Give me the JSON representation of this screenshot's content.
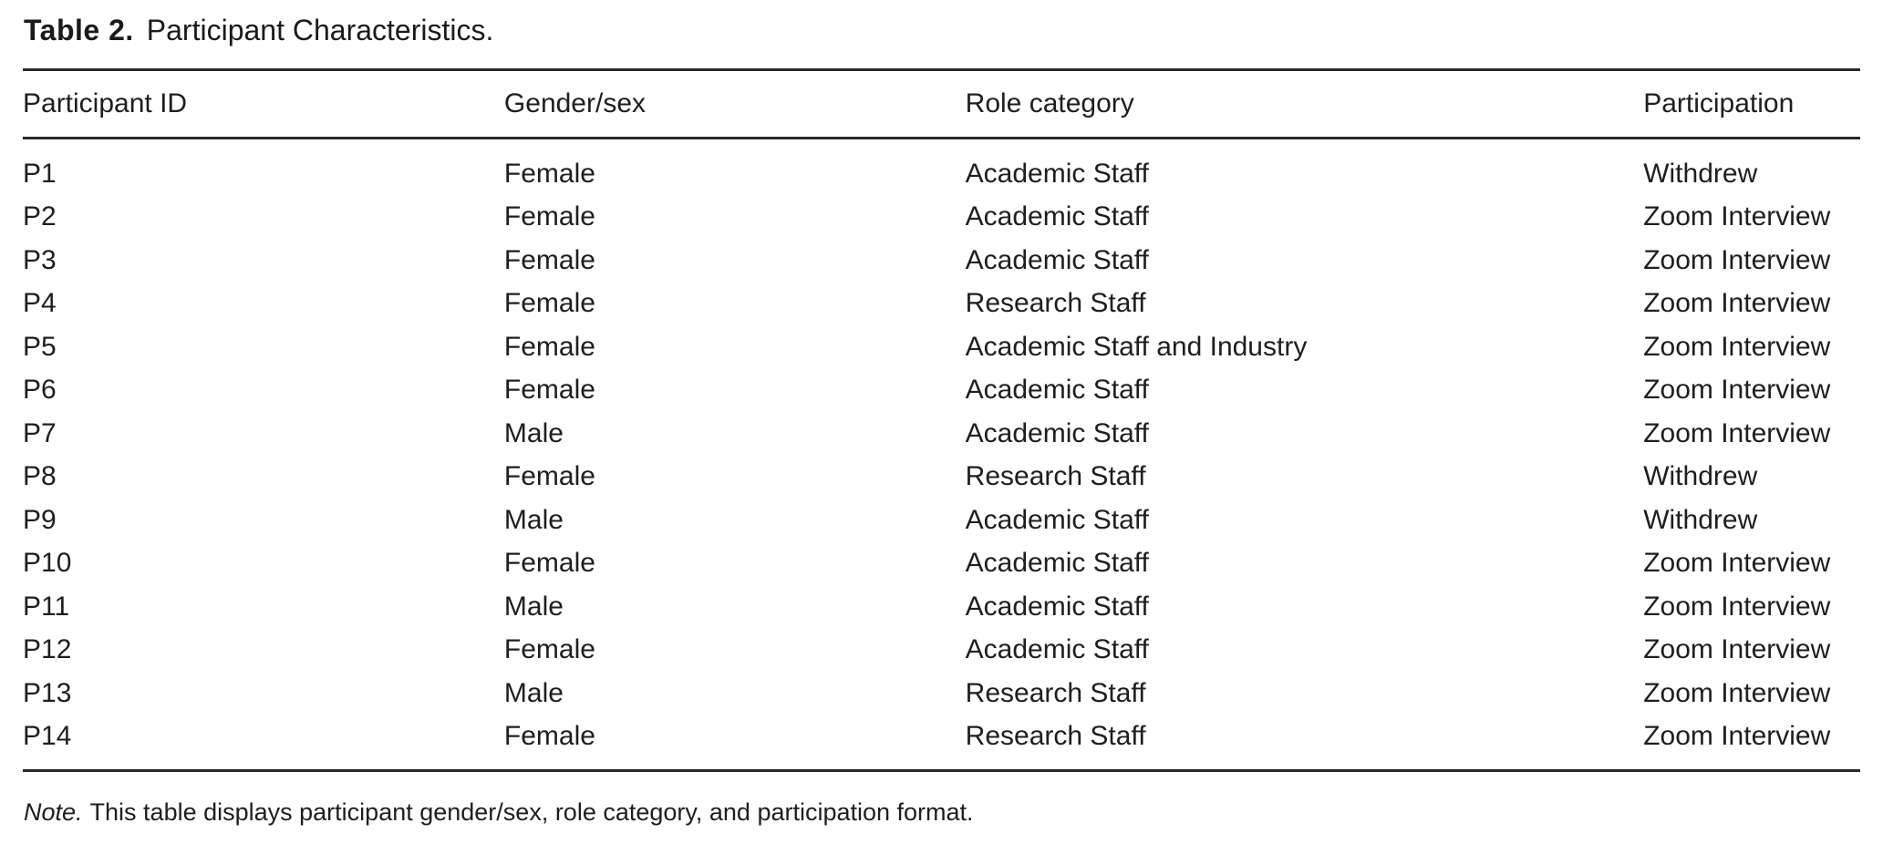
{
  "caption": {
    "label": "Table 2.",
    "title": "Participant Characteristics."
  },
  "table": {
    "headers": [
      "Participant ID",
      "Gender/sex",
      "Role category",
      "Participation"
    ],
    "rows": [
      [
        "P1",
        "Female",
        "Academic Staff",
        "Withdrew"
      ],
      [
        "P2",
        "Female",
        "Academic Staff",
        "Zoom Interview"
      ],
      [
        "P3",
        "Female",
        "Academic Staff",
        "Zoom Interview"
      ],
      [
        "P4",
        "Female",
        "Research Staff",
        "Zoom Interview"
      ],
      [
        "P5",
        "Female",
        "Academic Staff and Industry",
        "Zoom Interview"
      ],
      [
        "P6",
        "Female",
        "Academic Staff",
        "Zoom Interview"
      ],
      [
        "P7",
        "Male",
        "Academic Staff",
        "Zoom Interview"
      ],
      [
        "P8",
        "Female",
        "Research Staff",
        "Withdrew"
      ],
      [
        "P9",
        "Male",
        "Academic Staff",
        "Withdrew"
      ],
      [
        "P10",
        "Female",
        "Academic Staff",
        "Zoom Interview"
      ],
      [
        "P11",
        "Male",
        "Academic Staff",
        "Zoom Interview"
      ],
      [
        "P12",
        "Female",
        "Academic Staff",
        "Zoom Interview"
      ],
      [
        "P13",
        "Male",
        "Research Staff",
        "Zoom Interview"
      ],
      [
        "P14",
        "Female",
        "Research Staff",
        "Zoom Interview"
      ]
    ]
  },
  "note": {
    "label": "Note.",
    "text": "This table displays participant gender/sex, role category, and participation format."
  },
  "colors": {
    "text": "#1e1e1e",
    "rule": "#2a2a2a",
    "background": "#ffffff"
  }
}
